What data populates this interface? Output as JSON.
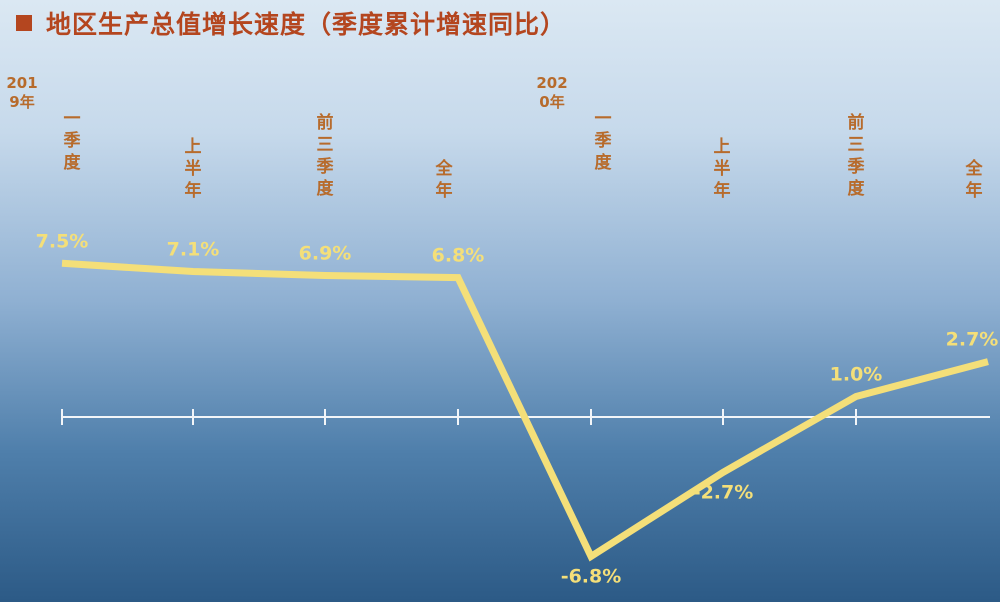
{
  "title": "地区生产总值增长速度（季度累计增速同比）",
  "colors": {
    "title": "#b4461f",
    "label": "#b76b2c",
    "line": "#f4df79",
    "value_text": "#f4df79",
    "axis": "#f2f5f8"
  },
  "chart_data": {
    "type": "line",
    "title": "地区生产总值增长速度（季度累计增速同比）",
    "years": [
      "2019年",
      "2020年"
    ],
    "categories": [
      "一季度",
      "上半年",
      "前三季度",
      "全年",
      "一季度",
      "上半年",
      "前三季度",
      "全年"
    ],
    "values": [
      7.5,
      7.1,
      6.9,
      6.8,
      -6.8,
      -2.7,
      1.0,
      2.7
    ],
    "value_labels": [
      "7.5%",
      "7.1%",
      "6.9%",
      "6.8%",
      "-6.8%",
      "-2.7%",
      "1.0%",
      "2.7%"
    ],
    "grid": false,
    "legend": "none"
  }
}
